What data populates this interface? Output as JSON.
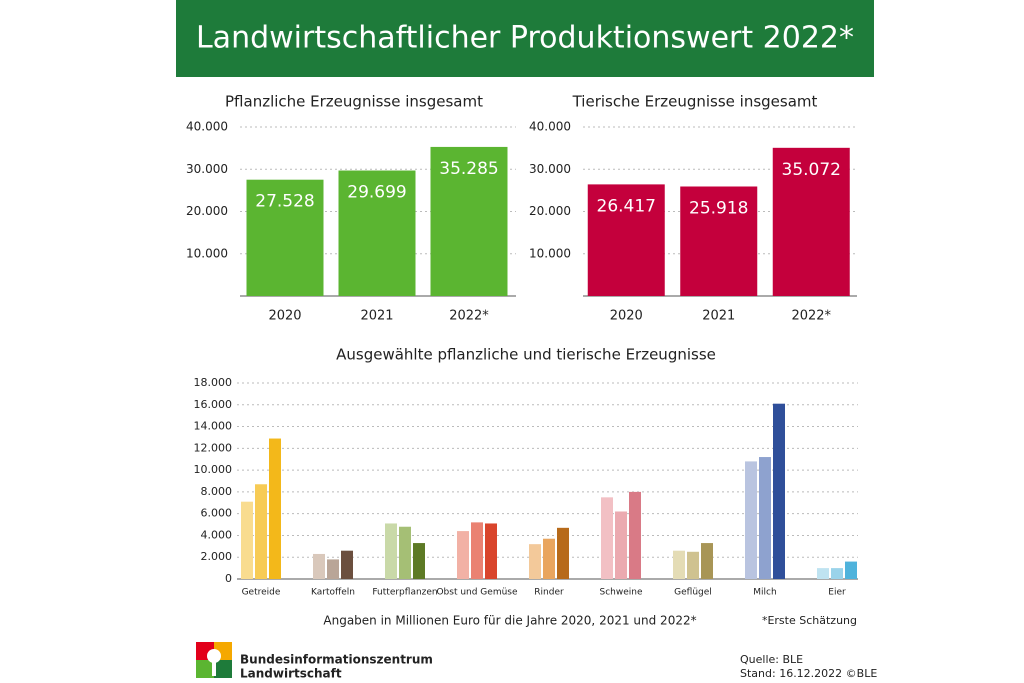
{
  "header": {
    "title": "Landwirtschaftlicher Produktionswert 2022*"
  },
  "chart_data": [
    {
      "type": "bar",
      "title": "Pflanzliche Erzeugnisse insgesamt",
      "categories": [
        "2020",
        "2021",
        "2022*"
      ],
      "values": [
        27528,
        29699,
        35285
      ],
      "value_labels": [
        "27.528",
        "29.699",
        "35.285"
      ],
      "color": "#5bb531",
      "ylim": [
        0,
        40000
      ],
      "yticks": [
        {
          "value": 10000,
          "label": "10.000"
        },
        {
          "value": 20000,
          "label": "20.000"
        },
        {
          "value": 30000,
          "label": "30.000"
        },
        {
          "value": 40000,
          "label": "40.000"
        }
      ],
      "grid": true
    },
    {
      "type": "bar",
      "title": "Tierische Erzeugnisse insgesamt",
      "categories": [
        "2020",
        "2021",
        "2022*"
      ],
      "values": [
        26417,
        25918,
        35072
      ],
      "value_labels": [
        "26.417",
        "25.918",
        "35.072"
      ],
      "color": "#c4003c",
      "ylim": [
        0,
        40000
      ],
      "yticks": [
        {
          "value": 10000,
          "label": "10.000"
        },
        {
          "value": 20000,
          "label": "20.000"
        },
        {
          "value": 30000,
          "label": "30.000"
        },
        {
          "value": 40000,
          "label": "40.000"
        }
      ],
      "grid": true
    },
    {
      "type": "bar",
      "title": "Ausgewählte pflanzliche und tierische Erzeugnisse",
      "categories": [
        "Getreide",
        "Kartoffeln",
        "Futterpflanzen",
        "Obst und Gemüse",
        "Rinder",
        "Schweine",
        "Geflügel",
        "Milch",
        "Eier"
      ],
      "series": [
        {
          "values": [
            7100,
            2300,
            5100,
            4400,
            3200,
            7500,
            2600,
            10800,
            1000
          ],
          "colors": [
            "#f9dc8f",
            "#d9c8bb",
            "#c9d9a8",
            "#f2b1a5",
            "#f3c99a",
            "#f2c0c4",
            "#e4dcb5",
            "#b9c4e0",
            "#bfe3f1"
          ]
        },
        {
          "values": [
            8700,
            1800,
            4800,
            5200,
            3700,
            6200,
            2500,
            11200,
            1000
          ],
          "colors": [
            "#f7cb55",
            "#b9a597",
            "#a5bf75",
            "#ea8272",
            "#e9a55e",
            "#ebaab0",
            "#cfc290",
            "#8ea2cf",
            "#9ad3ea"
          ]
        },
        {
          "values": [
            12900,
            2600,
            3300,
            5100,
            4700,
            8000,
            3300,
            16100,
            1600
          ],
          "colors": [
            "#f3b81a",
            "#6b4f3e",
            "#5d7a25",
            "#d9452c",
            "#b76a1a",
            "#d97a86",
            "#a89556",
            "#2f4f9a",
            "#4fb3dc"
          ]
        }
      ],
      "ylim": [
        0,
        18000
      ],
      "yticks": [
        0,
        {
          "value": 2000,
          "label": "2.000"
        },
        {
          "value": 4000,
          "label": "4.000"
        },
        {
          "value": 6000,
          "label": "6.000"
        },
        {
          "value": 8000,
          "label": "8.000"
        },
        {
          "value": 10000,
          "label": "10.000"
        },
        {
          "value": 12000,
          "label": "12.000"
        },
        {
          "value": 14000,
          "label": "14.000"
        },
        {
          "value": 16000,
          "label": "16.000"
        },
        {
          "value": 18000,
          "label": "18.000"
        }
      ],
      "grid": true
    }
  ],
  "footer": {
    "note": "Angaben in Millionen Euro für die Jahre 2020, 2021 und 2022*",
    "footnote": "*Erste Schätzung",
    "org_line1": "Bundesinformationszentrum",
    "org_line2": "Landwirtschaft",
    "source": "Quelle: BLE",
    "date": "Stand: 16.12.2022 ©BLE"
  }
}
